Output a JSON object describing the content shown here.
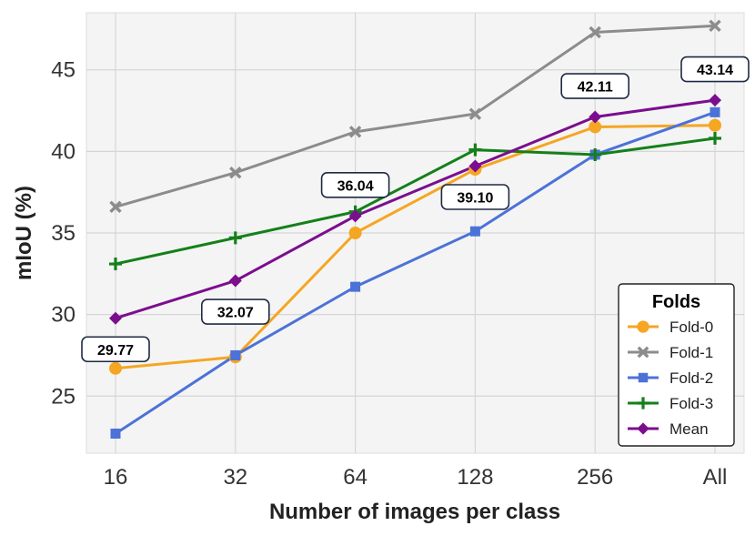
{
  "chart_data": {
    "type": "line",
    "categories": [
      "16",
      "32",
      "64",
      "128",
      "256",
      "All"
    ],
    "xlabel": "Number of images per class",
    "ylabel": "mIoU (%)",
    "ylim": [
      21.5,
      48.5
    ],
    "yticks": [
      25,
      30,
      35,
      40,
      45
    ],
    "grid": true,
    "legend": {
      "title": "Folds",
      "position": "lower-right"
    },
    "series": [
      {
        "name": "Fold-0",
        "color": "#F5A623",
        "marker": "circle",
        "values": [
          26.7,
          27.4,
          35.0,
          38.9,
          41.5,
          41.6
        ]
      },
      {
        "name": "Fold-1",
        "color": "#8C8C8C",
        "marker": "x",
        "values": [
          36.6,
          38.7,
          41.2,
          42.3,
          47.3,
          47.7
        ]
      },
      {
        "name": "Fold-2",
        "color": "#4C72D8",
        "marker": "square",
        "values": [
          22.7,
          27.5,
          31.7,
          35.1,
          39.8,
          42.4
        ]
      },
      {
        "name": "Fold-3",
        "color": "#14801A",
        "marker": "plus",
        "values": [
          33.1,
          34.7,
          36.3,
          40.1,
          39.8,
          40.8
        ]
      },
      {
        "name": "Mean",
        "color": "#7B0E8E",
        "marker": "diamond",
        "values": [
          29.77,
          32.07,
          36.04,
          39.1,
          42.11,
          43.14
        ]
      }
    ],
    "annotations": [
      {
        "text": "29.77",
        "category": "16",
        "placement": "below"
      },
      {
        "text": "32.07",
        "category": "32",
        "placement": "below"
      },
      {
        "text": "36.04",
        "category": "64",
        "placement": "above"
      },
      {
        "text": "39.10",
        "category": "128",
        "placement": "below"
      },
      {
        "text": "42.11",
        "category": "256",
        "placement": "above"
      },
      {
        "text": "43.14",
        "category": "All",
        "placement": "above"
      }
    ]
  }
}
